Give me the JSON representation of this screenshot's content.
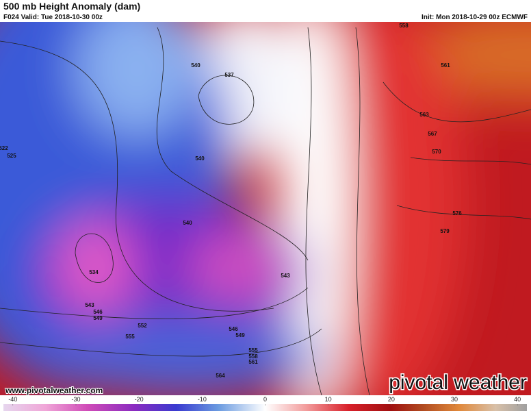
{
  "header": {
    "title": "500 mb Height Anomaly (dam)",
    "valid": "F024 Valid: Tue 2018-10-30 00z",
    "init": "Init: Mon 2018-10-29 00z ECMWF"
  },
  "map": {
    "contour_labels": [
      "558",
      "561",
      "540",
      "537",
      "563",
      "567",
      "570",
      "522",
      "525",
      "540",
      "540",
      "576",
      "579",
      "534",
      "543",
      "543",
      "546",
      "549",
      "552",
      "555",
      "546",
      "549",
      "555",
      "558",
      "561",
      "564"
    ]
  },
  "footer": {
    "website": "www.pivotalweather.com",
    "logo": "pivotal weather"
  },
  "colorbar": {
    "range": [
      -41.5,
      41.5
    ],
    "ticks": [
      -40,
      -30,
      -20,
      -10,
      0,
      10,
      20,
      30,
      40
    ]
  }
}
